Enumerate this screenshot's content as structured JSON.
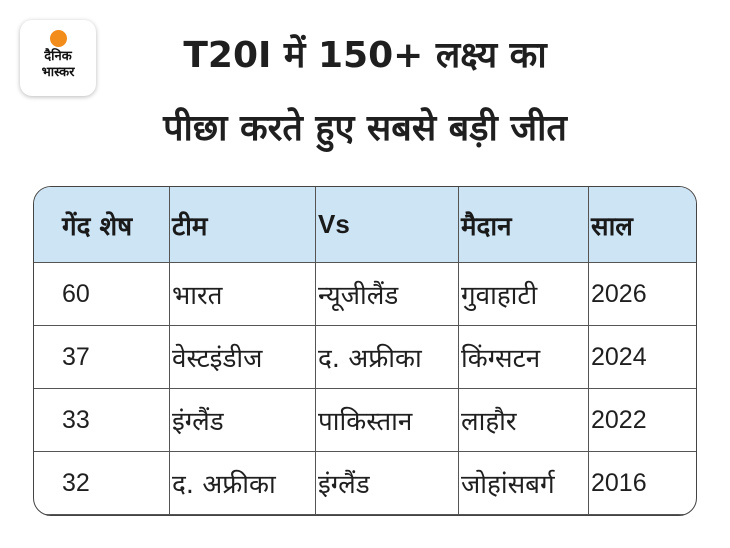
{
  "logo": {
    "line1": "दैनिक",
    "line2": "भास्कर",
    "accent_color": "#f28c1b"
  },
  "title": {
    "line1": "T20I में 150+ लक्ष्य का",
    "line2": "पीछा करते हुए सबसे बड़ी जीत"
  },
  "table": {
    "header_color": "#cde4f5",
    "columns": [
      "गेंद शेष",
      "टीम",
      "Vs",
      "मैदान",
      "साल"
    ],
    "rows": [
      [
        "60",
        "भारत",
        "न्यूजीलैंड",
        "गुवाहाटी",
        "2026"
      ],
      [
        "37",
        "वेस्टइंडीज",
        "द. अफ्रीका",
        "किंग्सटन",
        "2024"
      ],
      [
        "33",
        "इंग्लैंड",
        "पाकिस्तान",
        "लाहौर",
        "2022"
      ],
      [
        "32",
        "द. अफ्रीका",
        "इंग्लैंड",
        "जोहांसबर्ग",
        "2016"
      ]
    ]
  }
}
